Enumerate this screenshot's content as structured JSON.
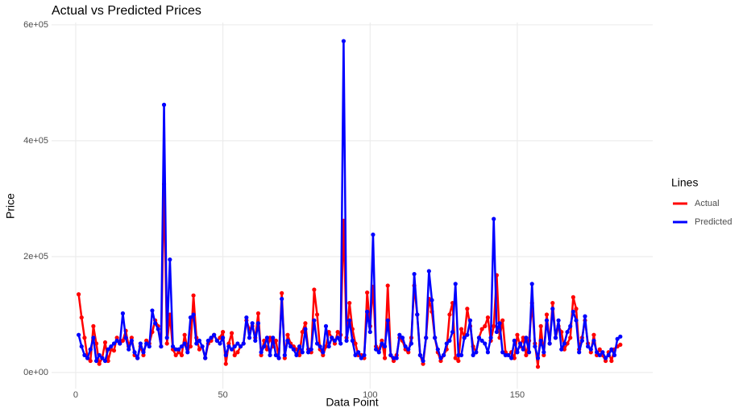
{
  "chart_data": {
    "type": "line",
    "title": "Actual vs Predicted Prices",
    "x_label": "Data Point",
    "y_label": "Price",
    "legend_title": "Lines",
    "legend_position": "right",
    "grid": true,
    "x": [
      1,
      2,
      3,
      4,
      5,
      6,
      7,
      8,
      9,
      10,
      11,
      12,
      13,
      14,
      15,
      16,
      17,
      18,
      19,
      20,
      21,
      22,
      23,
      24,
      25,
      26,
      27,
      28,
      29,
      30,
      31,
      32,
      33,
      34,
      35,
      36,
      37,
      38,
      39,
      40,
      41,
      42,
      43,
      44,
      45,
      46,
      47,
      48,
      49,
      50,
      51,
      52,
      53,
      54,
      55,
      56,
      57,
      58,
      59,
      60,
      61,
      62,
      63,
      64,
      65,
      66,
      67,
      68,
      69,
      70,
      71,
      72,
      73,
      74,
      75,
      76,
      77,
      78,
      79,
      80,
      81,
      82,
      83,
      84,
      85,
      86,
      87,
      88,
      89,
      90,
      91,
      92,
      93,
      94,
      95,
      96,
      97,
      98,
      99,
      100,
      101,
      102,
      103,
      104,
      105,
      106,
      107,
      108,
      109,
      110,
      111,
      112,
      113,
      114,
      115,
      116,
      117,
      118,
      119,
      120,
      121,
      122,
      123,
      124,
      125,
      126,
      127,
      128,
      129,
      130,
      131,
      132,
      133,
      134,
      135,
      136,
      137,
      138,
      139,
      140,
      141,
      142,
      143,
      144,
      145,
      146,
      147,
      148,
      149,
      150,
      151,
      152,
      153,
      154,
      155,
      156,
      157,
      158,
      159,
      160,
      161,
      162,
      163,
      164,
      165,
      166,
      167,
      168,
      169,
      170,
      171,
      172,
      173,
      174,
      175,
      176,
      177,
      178,
      179,
      180,
      181,
      182,
      183,
      184,
      185
    ],
    "xlim": [
      -8.2,
      196
    ],
    "xticks": [
      0,
      50,
      100,
      150
    ],
    "ylim": [
      -27800,
      604000
    ],
    "yticks": [
      {
        "value": 0,
        "label": "0e+00"
      },
      {
        "value": 200000,
        "label": "2e+05"
      },
      {
        "value": 400000,
        "label": "4e+05"
      },
      {
        "value": 600000,
        "label": "6e+05"
      }
    ],
    "series": [
      {
        "name": "Actual",
        "color": "#ff0000",
        "values": [
          135000,
          95000,
          60000,
          25000,
          20000,
          80000,
          50000,
          15000,
          25000,
          52000,
          20000,
          40000,
          38000,
          60000,
          50000,
          55000,
          72000,
          45000,
          60000,
          30000,
          25000,
          45000,
          30000,
          55000,
          50000,
          70000,
          90000,
          80000,
          45000,
          325000,
          50000,
          100000,
          40000,
          30000,
          35000,
          30000,
          65000,
          40000,
          45000,
          133000,
          60000,
          40000,
          45000,
          25000,
          50000,
          55000,
          65000,
          55000,
          60000,
          70000,
          15000,
          50000,
          68000,
          30000,
          35000,
          45000,
          50000,
          90000,
          75000,
          80000,
          60000,
          102000,
          30000,
          55000,
          40000,
          60000,
          45000,
          55000,
          25000,
          137000,
          25000,
          65000,
          50000,
          45000,
          40000,
          30000,
          70000,
          85000,
          40000,
          35000,
          143000,
          100000,
          40000,
          30000,
          45000,
          70000,
          60000,
          50000,
          70000,
          65000,
          262000,
          60000,
          120000,
          75000,
          50000,
          30000,
          30000,
          25000,
          138000,
          80000,
          148000,
          45000,
          40000,
          55000,
          25000,
          150000,
          30000,
          20000,
          30000,
          60000,
          55000,
          40000,
          35000,
          60000,
          150000,
          100000,
          30000,
          15000,
          60000,
          127000,
          105000,
          60000,
          35000,
          20000,
          30000,
          40000,
          100000,
          120000,
          25000,
          20000,
          75000,
          60000,
          110000,
          80000,
          45000,
          35000,
          60000,
          75000,
          80000,
          95000,
          55000,
          80000,
          168000,
          60000,
          90000,
          35000,
          30000,
          35000,
          25000,
          65000,
          45000,
          60000,
          30000,
          55000,
          120000,
          50000,
          10000,
          80000,
          30000,
          100000,
          50000,
          120000,
          60000,
          80000,
          70000,
          40000,
          50000,
          60000,
          130000,
          110000,
          40000,
          60000,
          90000,
          50000,
          35000,
          65000,
          30000,
          40000,
          30000,
          20000,
          35000,
          20000,
          40000,
          45000,
          48000
        ]
      },
      {
        "name": "Predicted",
        "color": "#0000ff",
        "values": [
          65000,
          45000,
          30000,
          25000,
          40000,
          60000,
          20000,
          30000,
          25000,
          20000,
          40000,
          45000,
          50000,
          55000,
          50000,
          102000,
          60000,
          40000,
          55000,
          35000,
          25000,
          50000,
          35000,
          50000,
          45000,
          107000,
          85000,
          75000,
          45000,
          462000,
          60000,
          195000,
          45000,
          40000,
          40000,
          45000,
          50000,
          35000,
          95000,
          100000,
          50000,
          55000,
          45000,
          25000,
          55000,
          60000,
          65000,
          55000,
          50000,
          60000,
          30000,
          45000,
          40000,
          45000,
          50000,
          45000,
          50000,
          95000,
          60000,
          85000,
          55000,
          85000,
          35000,
          45000,
          60000,
          30000,
          60000,
          30000,
          25000,
          127000,
          30000,
          55000,
          45000,
          40000,
          30000,
          45000,
          35000,
          75000,
          35000,
          40000,
          90000,
          50000,
          45000,
          35000,
          80000,
          45000,
          60000,
          55000,
          60000,
          50000,
          572000,
          55000,
          90000,
          55000,
          30000,
          35000,
          25000,
          30000,
          105000,
          70000,
          238000,
          40000,
          35000,
          50000,
          45000,
          90000,
          30000,
          25000,
          25000,
          65000,
          60000,
          45000,
          40000,
          50000,
          170000,
          100000,
          30000,
          20000,
          60000,
          175000,
          125000,
          60000,
          40000,
          25000,
          30000,
          50000,
          55000,
          70000,
          153000,
          30000,
          30000,
          60000,
          65000,
          90000,
          30000,
          35000,
          60000,
          55000,
          50000,
          35000,
          60000,
          265000,
          70000,
          85000,
          35000,
          30000,
          30000,
          25000,
          55000,
          35000,
          50000,
          40000,
          60000,
          35000,
          153000,
          45000,
          25000,
          55000,
          35000,
          90000,
          50000,
          110000,
          60000,
          90000,
          40000,
          50000,
          70000,
          80000,
          105000,
          90000,
          35000,
          55000,
          97000,
          45000,
          40000,
          55000,
          35000,
          30000,
          35000,
          25000,
          30000,
          40000,
          30000,
          58000,
          62000
        ]
      }
    ]
  }
}
